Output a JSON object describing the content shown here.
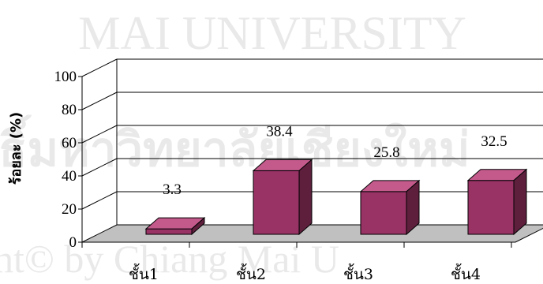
{
  "chart_data": {
    "type": "bar",
    "categories": [
      "ชั้น1",
      "ชั้น2",
      "ชั้น3",
      "ชั้น4"
    ],
    "values": [
      3.3,
      38.4,
      25.8,
      32.5
    ],
    "data_labels": [
      "3.3",
      "38.4",
      "25.8",
      "32.5"
    ],
    "title": "",
    "xlabel": "",
    "ylabel": "ร้อยละ (%)",
    "ylim": [
      0,
      100
    ],
    "yticks": [
      "0",
      "20",
      "40",
      "60",
      "80",
      "100"
    ],
    "grid": true,
    "legend": "none",
    "style": "3d-column",
    "colors": {
      "bar_front": "#993366",
      "bar_top": "#c45a8c",
      "bar_side": "#5e1f3d",
      "floor": "#c0c0c0",
      "gridline": "#000000"
    }
  },
  "watermark": {
    "arc_text": "MAI UNIVERSITY",
    "thai_text": "ธิ์มหาวิทยาลัยเชียงใหม่",
    "copyright_text": "ht© by Chiang Mai U"
  }
}
